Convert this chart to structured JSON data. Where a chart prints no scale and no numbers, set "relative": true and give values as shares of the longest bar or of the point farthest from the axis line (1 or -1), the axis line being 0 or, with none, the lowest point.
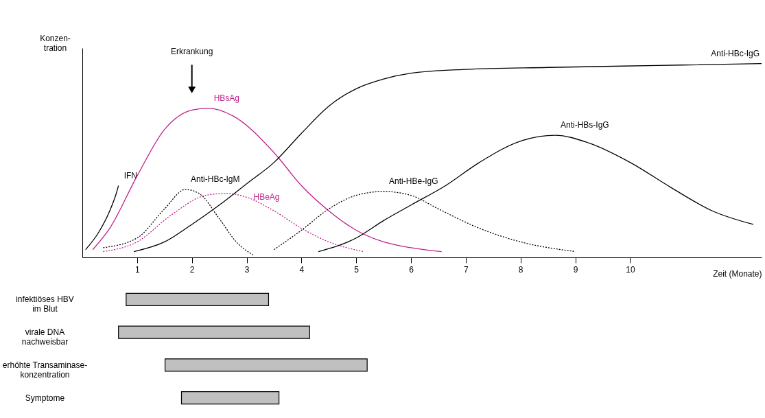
{
  "chart_data": [
    {
      "type": "line",
      "relative": true,
      "xlabel": "Zeit (Monate)",
      "ylabel": "Konzen-\ntration",
      "xlim": [
        0,
        12.4
      ],
      "xticks": [
        1,
        2,
        3,
        4,
        5,
        6,
        7,
        8,
        9,
        10
      ],
      "annotations": [
        {
          "text": "Erkrankung",
          "x": 2
        }
      ],
      "series": [
        {
          "name": "IFN",
          "color": "#000000",
          "line_style": "solid",
          "x": [
            0.06,
            0.3,
            0.5,
            0.62,
            0.66
          ],
          "values": [
            0.04,
            0.13,
            0.24,
            0.33,
            0.37
          ]
        },
        {
          "name": "HBsAg",
          "color": "#c0208a",
          "line_style": "solid",
          "x": [
            0.19,
            0.5,
            1.0,
            1.5,
            2.0,
            2.3,
            2.75,
            3.5,
            4.0,
            4.5,
            5.0,
            5.5,
            6.0,
            6.56
          ],
          "values": [
            0.04,
            0.15,
            0.42,
            0.66,
            0.76,
            0.77,
            0.73,
            0.54,
            0.37,
            0.24,
            0.14,
            0.08,
            0.05,
            0.03
          ]
        },
        {
          "name": "Anti-HBc-IgM",
          "color": "#000000",
          "line_style": "dotted",
          "x": [
            0.38,
            1.0,
            1.5,
            1.88,
            2.13,
            2.5,
            2.81,
            3.13
          ],
          "values": [
            0.05,
            0.1,
            0.25,
            0.35,
            0.33,
            0.2,
            0.08,
            0.01
          ]
        },
        {
          "name": "HBeAg",
          "color": "#c0208a",
          "line_style": "dotted",
          "x": [
            0.38,
            1.0,
            1.63,
            2.25,
            2.63,
            3.0,
            3.5,
            4.0,
            4.5,
            5.13
          ],
          "values": [
            0.03,
            0.08,
            0.22,
            0.32,
            0.33,
            0.31,
            0.24,
            0.15,
            0.08,
            0.03
          ]
        },
        {
          "name": "Anti-HBc-IgG",
          "color": "#000000",
          "line_style": "solid",
          "x": [
            0.94,
            1.5,
            2.0,
            2.5,
            3.0,
            3.5,
            4.0,
            4.5,
            5.0,
            5.5,
            6.0,
            7.0,
            8.5,
            10.5,
            12.4
          ],
          "values": [
            0.03,
            0.08,
            0.17,
            0.27,
            0.38,
            0.49,
            0.64,
            0.78,
            0.87,
            0.92,
            0.95,
            0.97,
            0.98,
            0.99,
            1.0
          ]
        },
        {
          "name": "Anti-HBe-IgG",
          "color": "#000000",
          "line_style": "dotted",
          "x": [
            3.5,
            4.0,
            4.5,
            5.0,
            5.5,
            6.0,
            6.5,
            7.25,
            8.0,
            9.0
          ],
          "values": [
            0.04,
            0.14,
            0.25,
            0.32,
            0.34,
            0.32,
            0.25,
            0.15,
            0.08,
            0.03
          ]
        },
        {
          "name": "Anti-HBs-IgG",
          "color": "#000000",
          "line_style": "solid",
          "x": [
            4.31,
            5.0,
            5.5,
            6.0,
            6.63,
            7.25,
            8.0,
            8.63,
            9.25,
            10.0,
            10.75,
            11.5,
            12.25
          ],
          "values": [
            0.03,
            0.1,
            0.19,
            0.27,
            0.37,
            0.49,
            0.6,
            0.63,
            0.59,
            0.49,
            0.36,
            0.24,
            0.17
          ]
        }
      ]
    },
    {
      "type": "bar",
      "orientation": "horizontal",
      "tick_labels": "y",
      "xlim": [
        0,
        12.4
      ],
      "color": "#c0c0c0",
      "categories": [
        "infektiöses HBV\nim Blut",
        "virale DNA\nnachweisbar",
        "erhöhte Transaminase-\nkonzentration",
        "Symptome"
      ],
      "base": [
        0.8,
        0.66,
        1.51,
        1.81
      ],
      "values": [
        2.6,
        3.49,
        3.69,
        1.78
      ]
    }
  ]
}
